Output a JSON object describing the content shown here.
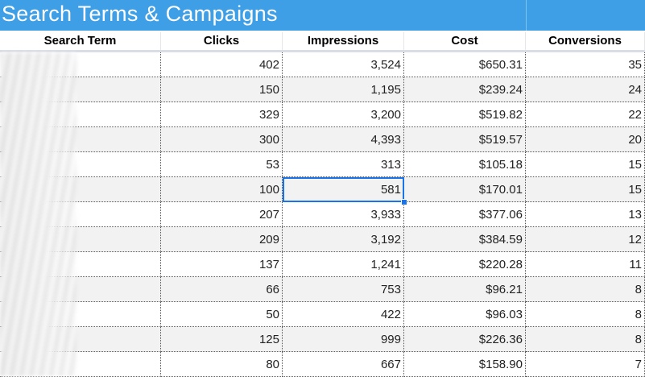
{
  "title": "Search Terms & Campaigns",
  "columns": [
    {
      "key": "term",
      "label": "Search Term"
    },
    {
      "key": "clicks",
      "label": "Clicks"
    },
    {
      "key": "impressions",
      "label": "Impressions"
    },
    {
      "key": "cost",
      "label": "Cost"
    },
    {
      "key": "conversions",
      "label": "Conversions"
    }
  ],
  "rows": [
    {
      "term": "",
      "clicks": "402",
      "impressions": "3,524",
      "cost": "$650.31",
      "conversions": "35"
    },
    {
      "term": "",
      "clicks": "150",
      "impressions": "1,195",
      "cost": "$239.24",
      "conversions": "24"
    },
    {
      "term": "",
      "clicks": "329",
      "impressions": "3,200",
      "cost": "$519.82",
      "conversions": "22"
    },
    {
      "term": "",
      "clicks": "300",
      "impressions": "4,393",
      "cost": "$519.57",
      "conversions": "20"
    },
    {
      "term": "",
      "clicks": "53",
      "impressions": "313",
      "cost": "$105.18",
      "conversions": "15"
    },
    {
      "term": "",
      "clicks": "100",
      "impressions": "581",
      "cost": "$170.01",
      "conversions": "15"
    },
    {
      "term": "",
      "clicks": "207",
      "impressions": "3,933",
      "cost": "$377.06",
      "conversions": "13"
    },
    {
      "term": "",
      "clicks": "209",
      "impressions": "3,192",
      "cost": "$384.59",
      "conversions": "12"
    },
    {
      "term": "",
      "clicks": "137",
      "impressions": "1,241",
      "cost": "$220.28",
      "conversions": "11"
    },
    {
      "term": "",
      "clicks": "66",
      "impressions": "753",
      "cost": "$96.21",
      "conversions": "8"
    },
    {
      "term": "",
      "clicks": "50",
      "impressions": "422",
      "cost": "$96.03",
      "conversions": "8"
    },
    {
      "term": "",
      "clicks": "125",
      "impressions": "999",
      "cost": "$226.36",
      "conversions": "8"
    },
    {
      "term": "",
      "clicks": "80",
      "impressions": "667",
      "cost": "$158.90",
      "conversions": "7"
    }
  ],
  "selected_cell": {
    "row": 5,
    "column": "impressions"
  },
  "colors": {
    "title_bar": "#3f9fe6",
    "shaded_row": "#f2f2f2",
    "selection": "#1a73e8"
  }
}
